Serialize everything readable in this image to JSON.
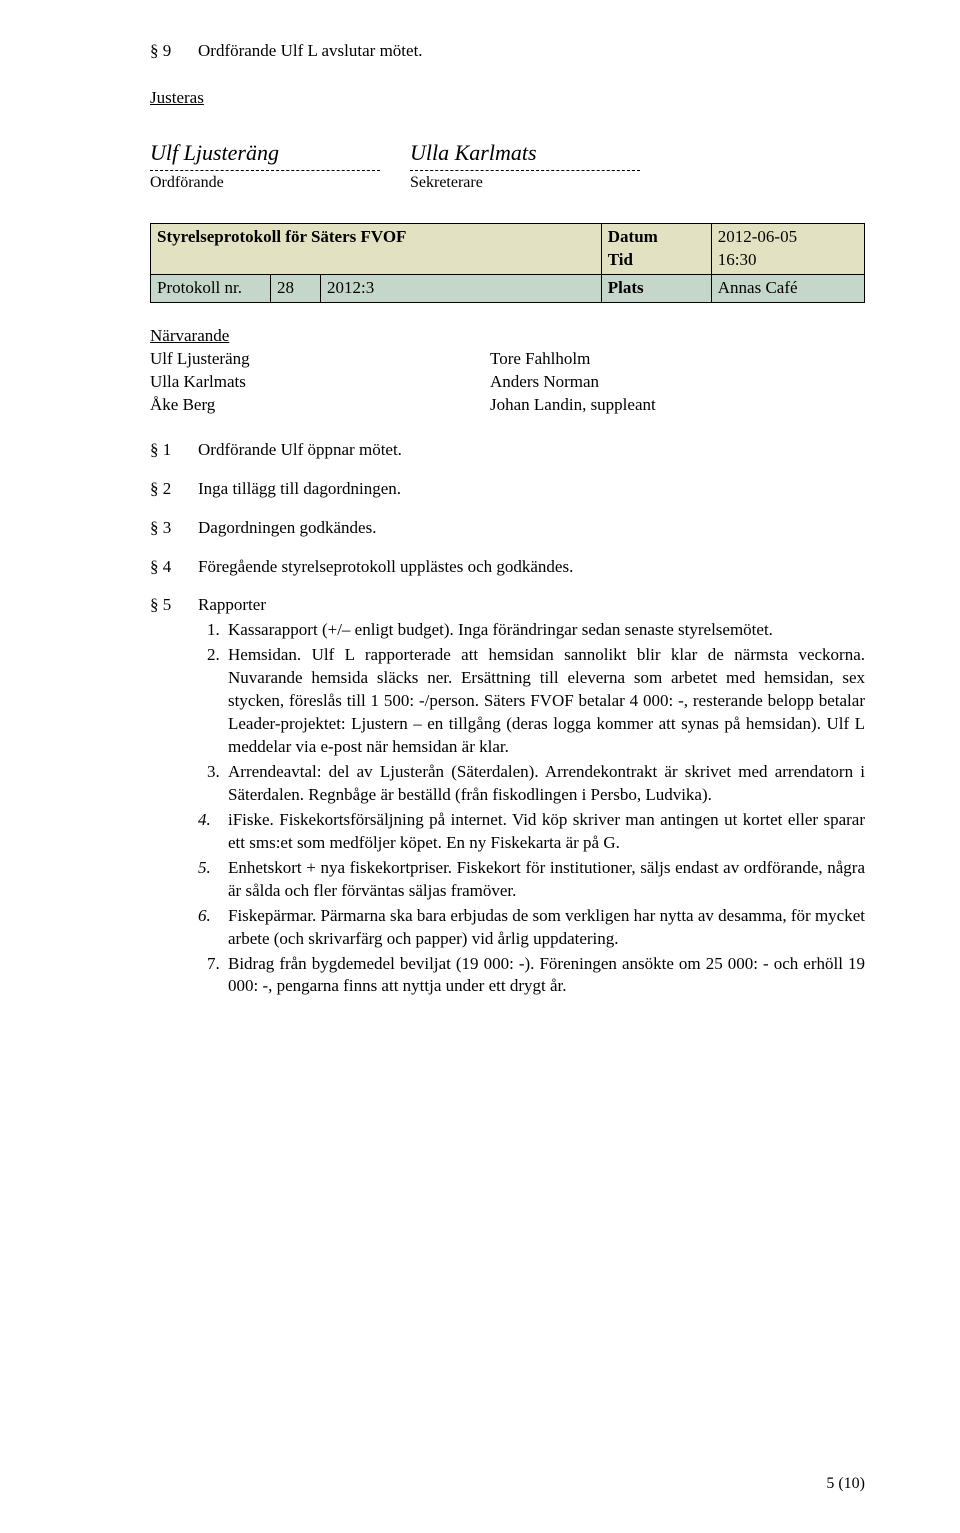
{
  "closing": {
    "num": "§ 9",
    "text": "Ordförande Ulf L avslutar mötet."
  },
  "justeras": "Justeras",
  "sig1": {
    "name": "Ulf Ljusteräng",
    "role": "Ordförande"
  },
  "sig2": {
    "name": "Ulla Karlmats",
    "role": "Sekreterare"
  },
  "proto": {
    "title": "Styrelseprotokoll för Säters FVOF",
    "datum_l": "Datum",
    "datum_v": "2012-06-05",
    "tid_l": "Tid",
    "tid_v": "16:30",
    "pn_l": "Protokoll nr.",
    "pn1": "28",
    "pn2": "2012:3",
    "plats_l": "Plats",
    "plats_v": "Annas Café"
  },
  "narvarande": {
    "heading": "Närvarande",
    "left": [
      "Ulf Ljusteräng",
      "Ulla Karlmats",
      "Åke Berg"
    ],
    "right": [
      "Tore Fahlholm",
      "Anders Norman",
      "Johan Landin, suppleant"
    ]
  },
  "items": [
    {
      "num": "§ 1",
      "text": "Ordförande Ulf öppnar mötet."
    },
    {
      "num": "§ 2",
      "text": "Inga tillägg till dagordningen."
    },
    {
      "num": "§ 3",
      "text": "Dagordningen godkändes."
    },
    {
      "num": "§ 4",
      "text": "Föregående styrelseprotokoll upplästes och godkändes."
    }
  ],
  "rapporter": {
    "num": "§ 5",
    "label": "Rapporter",
    "points": [
      "Kassarapport (+/– enligt budget). Inga förändringar sedan senaste styrelsemötet.",
      "Hemsidan. Ulf L rapporterade att hemsidan sannolikt blir klar de närmsta veckorna. Nuvarande hemsida släcks ner. Ersättning till eleverna som arbetet med hemsidan, sex stycken, föreslås till 1 500: -/person. Säters FVOF betalar 4 000: -, resterande belopp betalar Leader-projektet: Ljustern – en tillgång (deras logga kommer att synas på hemsidan). Ulf L meddelar via e-post när hemsidan är klar.",
      "Arrendeavtal: del av Ljusterån (Säterdalen). Arrendekontrakt är skrivet med arrendatorn i Säterdalen. Regnbåge är beställd (från fiskodlingen i Persbo, Ludvika).",
      "iFiske. Fiskekortsförsäljning på internet. Vid köp skriver man antingen ut kortet eller sparar ett sms:et som medföljer köpet. En ny Fiskekarta är på G.",
      "Enhetskort + nya fiskekortpriser. Fiskekort för institutioner, säljs endast av ordförande, några är sålda och fler förväntas säljas framöver.",
      "Fiskepärmar. Pärmarna ska bara erbjudas de som verkligen har nytta av desamma, för mycket arbete (och skrivarfärg och papper) vid årlig uppdatering.",
      "Bidrag från bygdemedel beviljat (19 000: -). Föreningen ansökte om 25 000: - och erhöll 19 000: -, pengarna finns att nyttja under ett drygt år."
    ],
    "italic_indices": [
      3,
      4,
      5
    ]
  },
  "pagenum": "5 (10)"
}
